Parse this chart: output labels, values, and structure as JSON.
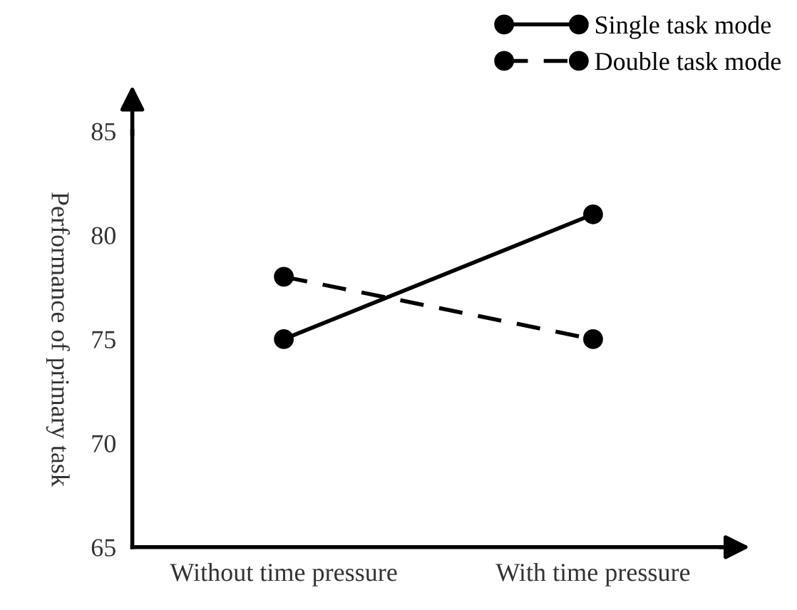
{
  "chart_data": {
    "type": "line",
    "ylabel": "Performance of primary task",
    "categories": [
      "Without time pressure",
      "With time pressure"
    ],
    "series": [
      {
        "name": "Single task mode",
        "color": "#000000",
        "values": [
          75,
          81
        ],
        "line_style": "solid"
      },
      {
        "name": "Double task mode",
        "color": "#000000",
        "values": [
          78,
          75
        ],
        "line_style": "dashed"
      }
    ],
    "ylim": [
      65,
      85
    ],
    "yticks": [
      65,
      70,
      75,
      80,
      85
    ],
    "grid": false,
    "legend": "top right",
    "marker": "circle"
  }
}
